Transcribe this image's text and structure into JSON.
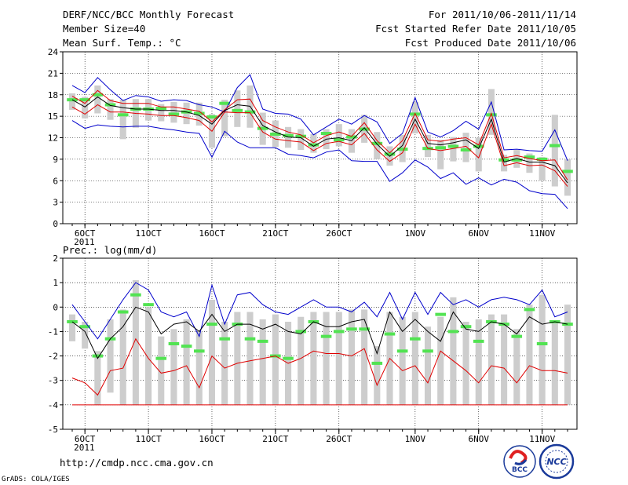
{
  "header": {
    "title": "DERF/NCC/BCC Monthly Forecast",
    "member_size": "Member Size=40",
    "variable": "Mean Surf. Temp.: °C",
    "period": "For 2011/10/06-2011/11/14",
    "started": "Fcst Started Refer Date 2011/10/05",
    "produced": "Fcst Produced Date 2011/10/06"
  },
  "footer": {
    "url": "http://cmdp.ncc.cma.gov.cn",
    "credit": "GrADS: COLA/IGES",
    "logo_bcc": "BCC",
    "logo_ncc": "NCC"
  },
  "colors": {
    "box": "#cdcdcd",
    "median": "#000000",
    "percentile": "#e00000",
    "extreme": "#0000cc",
    "observed": "#52e352",
    "grid": "#000000"
  },
  "chart_data": [
    {
      "type": "line",
      "title": "Mean Surf. Temp.: °C",
      "ylim": [
        0,
        24
      ],
      "yticks": [
        0,
        3,
        6,
        9,
        12,
        15,
        18,
        21,
        24
      ],
      "x_days": 40,
      "xtick_labels": [
        "6OCT",
        "11OCT",
        "16OCT",
        "21OCT",
        "26OCT",
        "1NOV",
        "6NOV",
        "11NOV"
      ],
      "xtick_days": [
        1,
        6,
        11,
        16,
        21,
        27,
        32,
        37
      ],
      "year_label": "2011",
      "series": [
        {
          "name": "max",
          "values": [
            19.3,
            18.3,
            20.4,
            18.7,
            17.2,
            17.9,
            17.7,
            17.1,
            17.3,
            17.2,
            16.6,
            16.3,
            15.6,
            19.0,
            20.8,
            16.0,
            15.4,
            15.3,
            14.6,
            12.4,
            13.5,
            14.6,
            13.9,
            15.1,
            14.2,
            11.2,
            12.6,
            17.6,
            12.8,
            12.1,
            13.0,
            14.3,
            13.2,
            17.0,
            10.3,
            10.4,
            10.2,
            10.1,
            13.1,
            8.8
          ]
        },
        {
          "name": "p75",
          "values": [
            17.8,
            16.8,
            18.6,
            17.2,
            16.8,
            16.8,
            16.8,
            16.3,
            16.3,
            16.0,
            15.7,
            14.2,
            15.9,
            17.3,
            17.4,
            14.4,
            13.5,
            12.8,
            12.4,
            11.3,
            12.3,
            12.8,
            12.2,
            14.1,
            11.6,
            9.9,
            11.6,
            15.4,
            11.7,
            11.5,
            11.8,
            12.0,
            11.0,
            15.4,
            9.2,
            9.5,
            9.1,
            8.8,
            8.9,
            6.1
          ]
        },
        {
          "name": "median",
          "values": [
            17.3,
            16.3,
            17.7,
            16.5,
            16.2,
            16.0,
            16.0,
            15.8,
            15.8,
            15.6,
            15.1,
            13.9,
            15.8,
            16.6,
            16.4,
            13.7,
            12.8,
            12.1,
            12.0,
            10.8,
            11.8,
            12.0,
            11.6,
            13.4,
            11.1,
            9.4,
            10.9,
            14.6,
            11.2,
            11.0,
            11.3,
            11.7,
            10.5,
            14.6,
            8.6,
            9.1,
            8.6,
            8.6,
            8.1,
            5.7
          ]
        },
        {
          "name": "p25",
          "values": [
            16.3,
            15.3,
            16.6,
            15.6,
            15.6,
            15.4,
            15.3,
            15.1,
            15.1,
            14.8,
            14.4,
            12.9,
            15.6,
            15.5,
            15.5,
            12.8,
            11.8,
            11.6,
            11.4,
            10.2,
            11.2,
            11.5,
            11.0,
            12.6,
            10.3,
            8.7,
            9.9,
            13.9,
            10.5,
            10.2,
            10.5,
            10.8,
            9.2,
            13.9,
            8.1,
            8.5,
            8.1,
            8.2,
            7.4,
            5.2
          ]
        },
        {
          "name": "min",
          "values": [
            14.4,
            13.3,
            13.8,
            13.6,
            13.5,
            13.6,
            13.6,
            13.3,
            13.1,
            12.8,
            12.6,
            9.3,
            12.9,
            11.4,
            10.6,
            10.6,
            10.6,
            9.7,
            9.5,
            9.2,
            10.0,
            10.3,
            8.8,
            8.7,
            8.7,
            5.9,
            7.1,
            8.9,
            7.9,
            6.3,
            7.1,
            5.5,
            6.4,
            5.4,
            6.2,
            5.8,
            4.6,
            4.2,
            4.1,
            2.1
          ]
        },
        {
          "name": "box_top",
          "values": [
            18.2,
            17.7,
            19.3,
            17.4,
            17.3,
            17.4,
            17.4,
            16.7,
            17.0,
            16.9,
            16.9,
            15.3,
            17.3,
            18.6,
            19.3,
            15.5,
            14.4,
            13.5,
            13.2,
            12.5,
            13.2,
            13.9,
            13.2,
            15.2,
            12.8,
            10.8,
            12.4,
            17.0,
            12.4,
            11.7,
            12.1,
            12.7,
            12.0,
            18.8,
            9.6,
            10.3,
            9.8,
            9.3,
            15.2,
            9.0
          ]
        },
        {
          "name": "box_bottom",
          "values": [
            15.9,
            14.7,
            15.4,
            14.5,
            11.8,
            13.4,
            14.4,
            14.3,
            14.1,
            13.9,
            13.7,
            10.6,
            12.2,
            13.5,
            13.4,
            11.0,
            10.7,
            10.6,
            10.3,
            9.9,
            10.4,
            10.8,
            9.9,
            11.3,
            9.0,
            8.1,
            8.6,
            12.6,
            9.3,
            7.6,
            8.7,
            8.6,
            7.3,
            12.4,
            7.3,
            7.8,
            7.1,
            6.0,
            5.2,
            3.9
          ]
        },
        {
          "name": "observed",
          "values": [
            17.3,
            17.3,
            18.0,
            16.6,
            15.2,
            16.0,
            16.0,
            16.1,
            15.3,
            15.6,
            15.4,
            14.9,
            16.8,
            15.8,
            15.6,
            13.3,
            12.5,
            12.3,
            12.2,
            11.0,
            12.6,
            11.7,
            12.1,
            13.2,
            11.2,
            9.7,
            10.4,
            15.3,
            10.5,
            10.6,
            10.8,
            10.3,
            10.8,
            15.2,
            8.9,
            8.9,
            9.3,
            9.0,
            10.9,
            7.3
          ]
        }
      ]
    },
    {
      "type": "line",
      "title": "Prec.: log(mm/d)",
      "ylim": [
        -5,
        2
      ],
      "yticks": [
        -5,
        -4,
        -3,
        -2,
        -1,
        0,
        1,
        2
      ],
      "x_days": 40,
      "xtick_labels": [
        "6OCT",
        "11OCT",
        "16OCT",
        "21OCT",
        "26OCT",
        "1NOV",
        "6NOV",
        "11NOV"
      ],
      "xtick_days": [
        1,
        6,
        11,
        16,
        21,
        27,
        32,
        37
      ],
      "year_label": "2011",
      "series": [
        {
          "name": "max",
          "values": [
            0.1,
            -0.6,
            -1.3,
            -0.5,
            0.3,
            1.0,
            0.7,
            -0.2,
            -0.4,
            -0.2,
            -1.2,
            0.9,
            -0.7,
            0.5,
            0.6,
            0.1,
            -0.2,
            -0.3,
            0.0,
            0.3,
            0.0,
            0.0,
            -0.2,
            0.2,
            -0.4,
            0.6,
            -0.5,
            0.6,
            -0.3,
            0.6,
            0.1,
            0.3,
            0.0,
            0.3,
            0.4,
            0.3,
            0.1,
            0.7,
            -0.4,
            -0.2
          ]
        },
        {
          "name": "median",
          "values": [
            -0.6,
            -1.0,
            -2.1,
            -1.3,
            -0.8,
            0.0,
            -0.2,
            -1.1,
            -0.7,
            -0.6,
            -1.0,
            -0.3,
            -1.0,
            -0.7,
            -0.7,
            -0.9,
            -0.7,
            -1.0,
            -1.1,
            -0.6,
            -0.8,
            -0.8,
            -0.6,
            -0.5,
            -1.9,
            -0.2,
            -1.0,
            -0.5,
            -1.0,
            -1.4,
            -0.2,
            -0.9,
            -1.0,
            -0.6,
            -0.7,
            -1.1,
            -0.4,
            -0.7,
            -0.6,
            -0.7
          ]
        },
        {
          "name": "min",
          "values": [
            -2.9,
            -3.1,
            -3.6,
            -2.6,
            -2.5,
            -1.3,
            -2.1,
            -2.7,
            -2.6,
            -2.4,
            -3.3,
            -2.0,
            -2.5,
            -2.3,
            -2.2,
            -2.1,
            -2.0,
            -2.3,
            -2.1,
            -1.8,
            -1.9,
            -1.9,
            -2.0,
            -1.7,
            -3.2,
            -2.1,
            -2.6,
            -2.4,
            -3.1,
            -1.8,
            -2.2,
            -2.6,
            -3.1,
            -2.4,
            -2.5,
            -3.1,
            -2.4,
            -2.6,
            -2.6,
            -2.7
          ]
        },
        {
          "name": "floor",
          "values": [
            -4.0,
            -4.0,
            -4.0,
            -4.0,
            -4.0,
            -4.0,
            -4.0,
            -4.0,
            -4.0,
            -4.0,
            -4.0,
            -4.0,
            -4.0,
            -4.0,
            -4.0,
            -4.0,
            -4.0,
            -4.0,
            -4.0,
            -4.0,
            -4.0,
            -4.0,
            -4.0,
            -4.0,
            -4.0,
            -4.0,
            -4.0,
            -4.0,
            -4.0,
            -4.0,
            -4.0,
            -4.0,
            -4.0,
            -4.0,
            -4.0,
            -4.0,
            -4.0,
            -4.0,
            -4.0,
            -4.0
          ]
        },
        {
          "name": "box_top",
          "values": [
            -0.3,
            -0.6,
            -1.8,
            -0.5,
            -0.1,
            1.1,
            0.0,
            -1.2,
            -0.9,
            -0.5,
            -1.0,
            0.3,
            -0.6,
            -0.2,
            -0.2,
            -0.5,
            -0.3,
            -0.6,
            -0.4,
            -0.2,
            -0.2,
            -0.2,
            -0.1,
            -0.1,
            -1.6,
            -0.2,
            -0.4,
            -0.2,
            -0.8,
            -0.4,
            0.4,
            -0.6,
            -0.5,
            -0.3,
            -0.3,
            -0.9,
            0.1,
            0.5,
            -0.6,
            0.1
          ]
        },
        {
          "name": "box_bottom",
          "values": [
            -1.4,
            -1.7,
            -4.0,
            -3.5,
            -4.0,
            -4.0,
            -4.0,
            -4.0,
            -4.0,
            -4.0,
            -4.0,
            -4.0,
            -4.0,
            -4.0,
            -4.0,
            -4.0,
            -4.0,
            -4.0,
            -4.0,
            -4.0,
            -4.0,
            -4.0,
            -4.0,
            -4.0,
            -4.0,
            -4.0,
            -4.0,
            -4.0,
            -4.0,
            -4.0,
            -4.0,
            -4.0,
            -4.0,
            -4.0,
            -4.0,
            -4.0,
            -4.0,
            -4.0,
            -4.0,
            -4.0
          ]
        },
        {
          "name": "observed",
          "values": [
            -0.6,
            -0.8,
            -2.0,
            -1.3,
            -0.2,
            0.5,
            0.1,
            -2.1,
            -1.5,
            -1.6,
            -1.8,
            -0.7,
            -1.3,
            -0.7,
            -1.3,
            -1.4,
            -2.0,
            -2.1,
            -1.0,
            -0.6,
            -1.2,
            -1.0,
            -0.9,
            -0.9,
            -2.3,
            -1.1,
            -1.8,
            -1.3,
            -1.8,
            -0.3,
            -1.0,
            -0.8,
            -1.4,
            -0.6,
            -0.7,
            -1.2,
            -0.1,
            -1.5,
            -0.6,
            -0.7
          ]
        }
      ]
    }
  ]
}
